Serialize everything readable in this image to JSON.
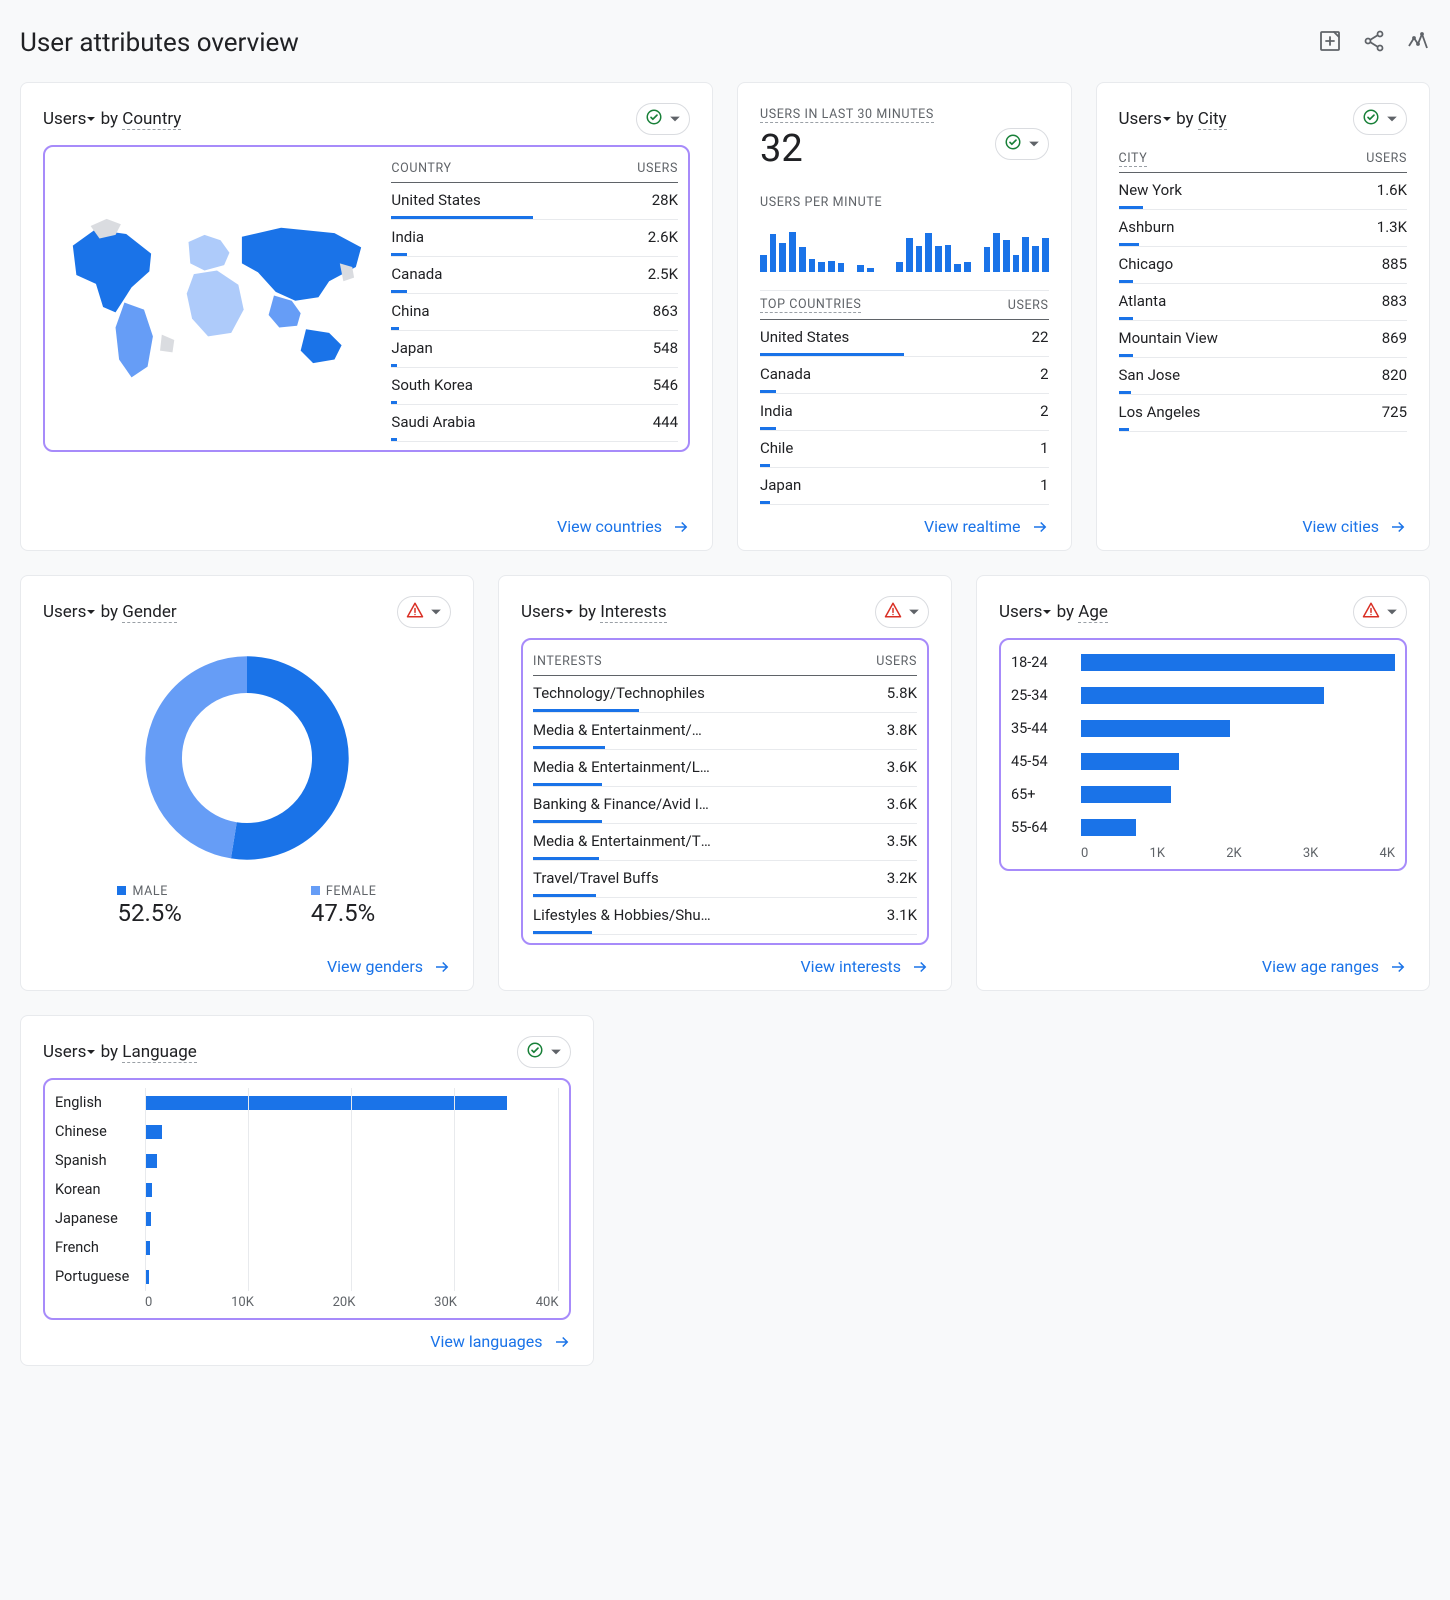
{
  "page": {
    "title": "User attributes overview"
  },
  "colors": {
    "accent": "#1a73e8",
    "highlight": "#a78bfa",
    "map_light": "#aecbfa",
    "map_dark": "#1a73e8",
    "map_none": "#dadce0",
    "female": "#669df6"
  },
  "icons": {
    "ok": "check-circle",
    "warn": "warning-triangle"
  },
  "country_card": {
    "title_prefix": "Users",
    "title_by": "by",
    "dimension": "Country",
    "status": "ok",
    "table": {
      "col1": "COUNTRY",
      "col2": "USERS",
      "rows": [
        {
          "label": "United States",
          "value": "28K",
          "bar_pct": 72
        },
        {
          "label": "India",
          "value": "2.6K",
          "bar_pct": 8
        },
        {
          "label": "Canada",
          "value": "2.5K",
          "bar_pct": 8
        },
        {
          "label": "China",
          "value": "863",
          "bar_pct": 4
        },
        {
          "label": "Japan",
          "value": "548",
          "bar_pct": 3
        },
        {
          "label": "South Korea",
          "value": "546",
          "bar_pct": 3
        },
        {
          "label": "Saudi Arabia",
          "value": "444",
          "bar_pct": 3
        }
      ]
    },
    "footer": "View countries"
  },
  "realtime_card": {
    "title": "USERS IN LAST 30 MINUTES",
    "value": "32",
    "status": "ok",
    "subtitle": "USERS PER MINUTE",
    "bars_pct": [
      30,
      68,
      52,
      72,
      44,
      24,
      18,
      20,
      16,
      0,
      12,
      8,
      0,
      0,
      18,
      60,
      46,
      70,
      46,
      48,
      14,
      18,
      0,
      44,
      70,
      58,
      30,
      62,
      46,
      60
    ],
    "top_label": "TOP COUNTRIES",
    "top_col2": "USERS",
    "rows": [
      {
        "label": "United States",
        "value": "22",
        "bar_pct": 70
      },
      {
        "label": "Canada",
        "value": "2",
        "bar_pct": 8
      },
      {
        "label": "India",
        "value": "2",
        "bar_pct": 8
      },
      {
        "label": "Chile",
        "value": "1",
        "bar_pct": 5
      },
      {
        "label": "Japan",
        "value": "1",
        "bar_pct": 5
      }
    ],
    "footer": "View realtime"
  },
  "city_card": {
    "title_prefix": "Users",
    "title_by": "by",
    "dimension": "City",
    "status": "ok",
    "table": {
      "col1": "CITY",
      "col2": "USERS",
      "rows": [
        {
          "label": "New York",
          "value": "1.6K",
          "bar_pct": 12
        },
        {
          "label": "Ashburn",
          "value": "1.3K",
          "bar_pct": 10
        },
        {
          "label": "Chicago",
          "value": "885",
          "bar_pct": 7
        },
        {
          "label": "Atlanta",
          "value": "883",
          "bar_pct": 7
        },
        {
          "label": "Mountain View",
          "value": "869",
          "bar_pct": 7
        },
        {
          "label": "San Jose",
          "value": "820",
          "bar_pct": 6
        },
        {
          "label": "Los Angeles",
          "value": "725",
          "bar_pct": 5
        }
      ]
    },
    "footer": "View cities"
  },
  "gender_card": {
    "title_prefix": "Users",
    "title_by": "by",
    "dimension": "Gender",
    "status": "warn",
    "donut": {
      "male_pct": 52.5,
      "female_pct": 47.5
    },
    "legend": {
      "male_label": "MALE",
      "male_value": "52.5%",
      "female_label": "FEMALE",
      "female_value": "47.5%"
    },
    "footer": "View genders"
  },
  "interests_card": {
    "title_prefix": "Users",
    "title_by": "by",
    "dimension": "Interests",
    "status": "warn",
    "table": {
      "col1": "INTERESTS",
      "col2": "USERS",
      "rows": [
        {
          "label": "Technology/Technophiles",
          "value": "5.8K",
          "bar_pct": 34
        },
        {
          "label": "Media & Entertainment/Movi...",
          "value": "3.8K",
          "bar_pct": 23
        },
        {
          "label": "Media & Entertainment/Ligh...",
          "value": "3.6K",
          "bar_pct": 22
        },
        {
          "label": "Banking & Finance/Avid Inve...",
          "value": "3.6K",
          "bar_pct": 22
        },
        {
          "label": "Media & Entertainment/TV L...",
          "value": "3.5K",
          "bar_pct": 21
        },
        {
          "label": "Travel/Travel Buffs",
          "value": "3.2K",
          "bar_pct": 20
        },
        {
          "label": "Lifestyles & Hobbies/Shutter...",
          "value": "3.1K",
          "bar_pct": 19
        }
      ]
    },
    "footer": "View interests"
  },
  "age_card": {
    "title_prefix": "Users",
    "title_by": "by",
    "dimension": "Age",
    "status": "warn",
    "chart": {
      "xmax": 4,
      "xticks": [
        "0",
        "1K",
        "2K",
        "3K",
        "4K"
      ],
      "rows": [
        {
          "label": "18-24",
          "value_k": 4.0
        },
        {
          "label": "25-34",
          "value_k": 3.1
        },
        {
          "label": "35-44",
          "value_k": 1.9
        },
        {
          "label": "45-54",
          "value_k": 1.25
        },
        {
          "label": "65+",
          "value_k": 1.15
        },
        {
          "label": "55-64",
          "value_k": 0.7
        }
      ]
    },
    "footer": "View age ranges"
  },
  "language_card": {
    "title_prefix": "Users",
    "title_by": "by",
    "dimension": "Language",
    "status": "ok",
    "chart": {
      "xmax": 40,
      "xticks": [
        "0",
        "10K",
        "20K",
        "30K",
        "40K"
      ],
      "rows": [
        {
          "label": "English",
          "value_k": 35
        },
        {
          "label": "Chinese",
          "value_k": 1.6
        },
        {
          "label": "Spanish",
          "value_k": 1.2
        },
        {
          "label": "Korean",
          "value_k": 0.7
        },
        {
          "label": "Japanese",
          "value_k": 0.6
        },
        {
          "label": "French",
          "value_k": 0.5
        },
        {
          "label": "Portuguese",
          "value_k": 0.4
        }
      ]
    },
    "footer": "View languages"
  }
}
